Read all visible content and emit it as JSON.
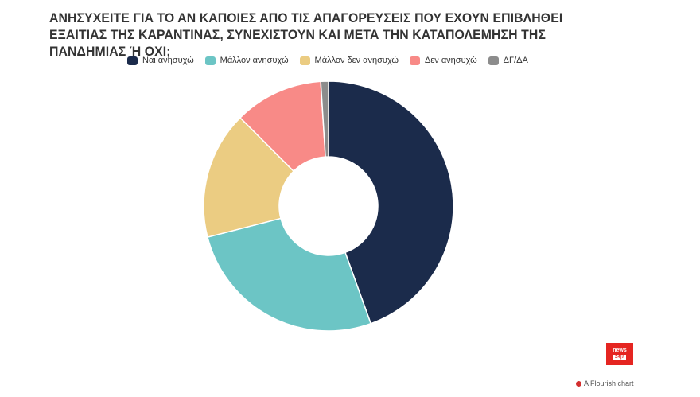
{
  "chart_data": {
    "type": "pie",
    "donut": true,
    "title": "ΑΝΗΣΥΧΕΙΤΕ ΓΙΑ ΤΟ ΑΝ ΚΑΠΟΙΕΣ ΑΠΟ ΤΙΣ ΑΠΑΓΟΡΕΥΣΕΙΣ ΠΟΥ ΕΧΟΥΝ ΕΠΙΒΛΗΘΕΙ ΕΞΑΙΤΙΑΣ ΤΗΣ ΚΑΡΑΝΤΙΝΑΣ, ΣΥΝΕΧΙΣΤΟΥΝ ΚΑΙ ΜΕΤΑ ΤΗΝ ΚΑΤΑΠΟΛΕΜΗΣΗ ΤΗΣ ΠΑΝΔΗΜΙΑΣ Ή ΟΧΙ;",
    "legend_position": "top",
    "slices": [
      {
        "label": "Ναι ανησυχώ",
        "value": 44.5,
        "color": "#1b2b4b"
      },
      {
        "label": "Μάλλον ανησυχώ",
        "value": 26.5,
        "color": "#6cc5c5"
      },
      {
        "label": "Μάλλον δεν ανησυχώ",
        "value": 16.5,
        "color": "#ebcc82"
      },
      {
        "label": "Δεν ανησυχώ",
        "value": 11.5,
        "color": "#f88a87"
      },
      {
        "label": "ΔΓ/ΔΑ",
        "value": 1.0,
        "color": "#8c8c8c"
      }
    ]
  },
  "branding": {
    "logo_top": "news",
    "logo_bottom": "24|7",
    "credit": "A Flourish chart"
  }
}
